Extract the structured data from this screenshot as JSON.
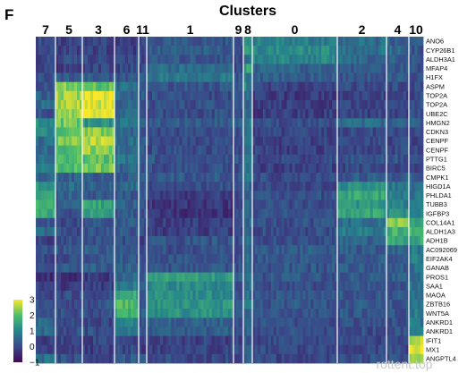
{
  "panel_letter": "F",
  "watermark": "rottent.top",
  "chart_data": {
    "type": "heatmap",
    "title": "Clusters",
    "cluster_order": [
      "7",
      "5",
      "3",
      "6",
      "11",
      "1",
      "9",
      "8",
      "0",
      "2",
      "4",
      "10"
    ],
    "genes": [
      "ANO6",
      "CYP26B1",
      "ALDH3A1",
      "MFAP4",
      "H1FX",
      "ASPM",
      "TOP2A",
      "TOP2A",
      "UBE2C",
      "HMGN2",
      "CDKN3",
      "CENPF",
      "CENPF",
      "PTTG1",
      "BIRC5",
      "CMPK1",
      "HIGD1A",
      "PHLDA1",
      "TUBB3",
      "IGFBP3",
      "COL14A1",
      "ALDH1A3",
      "ADH1B",
      "AC092069",
      "EIF2AK4",
      "GANAB",
      "PROS1",
      "SAA1",
      "MAOA",
      "ZBTB16",
      "WNT5A",
      "ANKRD1",
      "ANKRD1",
      "IFIT1",
      "MX1",
      "ANGPTL4"
    ],
    "colorbar": {
      "ticks": [
        "3",
        "2",
        "1",
        "0",
        "-1"
      ],
      "range": [
        -1,
        3
      ]
    },
    "colors": {
      "low": "#3e0a54",
      "mid": "#2b7d8c",
      "high": "#f9e72a"
    },
    "values_by_cluster": {
      "7": [
        0.1,
        0,
        0,
        -0.1,
        0.2,
        0.2,
        0.4,
        0.6,
        0.2,
        1.1,
        1.0,
        0.6,
        0.5,
        0.6,
        0.8,
        0.5,
        1.2,
        1.3,
        1.8,
        1.6,
        0.3,
        0.6,
        -0.1,
        0.1,
        0,
        0.2,
        -0.4,
        -0.2,
        -0.1,
        0,
        0.3,
        0.5,
        0.5,
        -0.2,
        -0.1,
        0.7
      ],
      "5": [
        -0.1,
        -0.1,
        0,
        -0.2,
        0.3,
        2.3,
        2.5,
        2.6,
        2.5,
        2.2,
        2.1,
        2.2,
        2.0,
        1.9,
        2.0,
        0.4,
        0.6,
        0.5,
        0.3,
        0.2,
        0.1,
        0.1,
        0.1,
        0.2,
        0.1,
        0.3,
        -0.3,
        -0.3,
        0.1,
        0,
        0.1,
        0,
        0.1,
        -0.1,
        -0.2,
        0.1
      ],
      "3": [
        -0.1,
        -0.1,
        0,
        0,
        0.3,
        2.0,
        3.0,
        2.8,
        3.0,
        1.2,
        2.4,
        2.6,
        2.4,
        2.0,
        2.2,
        0.3,
        0.4,
        0.3,
        1.5,
        1.4,
        0.2,
        0.2,
        0.1,
        0.3,
        0.2,
        0.3,
        -0.2,
        -0.2,
        0.1,
        0.2,
        0.1,
        0,
        0.1,
        -0.1,
        -0.2,
        0
      ],
      "6": [
        -0.2,
        -0.2,
        -0.1,
        0,
        0.2,
        0.6,
        0.5,
        0.4,
        0.5,
        0.7,
        0.5,
        0.6,
        0.6,
        0.8,
        0.5,
        0.3,
        0.5,
        0.3,
        0.4,
        0.2,
        0.3,
        0.2,
        0.1,
        0.4,
        0.3,
        0.4,
        0.6,
        0.9,
        1.6,
        1.9,
        1.7,
        0.9,
        0.8,
        0,
        0,
        0.3
      ],
      "11": [
        0,
        -0.1,
        0,
        0,
        0.5,
        0.1,
        0.2,
        0.2,
        0.1,
        0.4,
        0.2,
        0.3,
        0.2,
        0.3,
        0.2,
        0.4,
        0.3,
        0.2,
        0.2,
        0.2,
        0.1,
        0.1,
        0,
        0.2,
        0.2,
        0.2,
        0.4,
        0.3,
        0.3,
        0.3,
        0.3,
        0.1,
        0.1,
        -0.1,
        -0.2,
        0.1
      ],
      "1": [
        0.2,
        0.3,
        0.2,
        0.6,
        0.8,
        0.2,
        0.1,
        0.1,
        0.1,
        0.3,
        0.1,
        0.1,
        0.1,
        0.2,
        0.1,
        0.3,
        0.1,
        -0.2,
        -0.3,
        -0.4,
        -0.1,
        -0.2,
        0.2,
        0.1,
        0.2,
        0.2,
        1.4,
        1.1,
        1.1,
        1.3,
        1.2,
        0.4,
        0.3,
        -0.1,
        -0.1,
        0
      ],
      "9": [
        0,
        -0.1,
        0,
        0,
        0.2,
        0.1,
        0.1,
        0.1,
        0.1,
        0.3,
        0.1,
        0.1,
        0.1,
        0.2,
        0.1,
        0.2,
        0.3,
        0.1,
        0,
        0,
        0.1,
        0,
        0,
        0.1,
        0.1,
        0.1,
        0.4,
        0.2,
        0.2,
        0.3,
        0.2,
        0.1,
        0.1,
        -0.1,
        -0.1,
        0
      ],
      "8": [
        1.0,
        1.2,
        0.8,
        1.5,
        0.9,
        1.0,
        0.6,
        0.5,
        0.6,
        0.8,
        0.6,
        0.6,
        0.6,
        0.7,
        0.6,
        0.6,
        0.5,
        0.4,
        0.5,
        0.6,
        0.5,
        0.4,
        0.5,
        0.5,
        0.5,
        0.5,
        0.6,
        0.6,
        0.6,
        0.7,
        0.6,
        0.4,
        0.4,
        0.3,
        0.3,
        0.3
      ],
      "0": [
        0.9,
        1.1,
        1.0,
        0.4,
        0.3,
        -0.1,
        -0.2,
        -0.2,
        -0.2,
        0.1,
        -0.1,
        -0.1,
        -0.1,
        0,
        -0.1,
        0.1,
        0,
        0.1,
        0.1,
        0.2,
        0.1,
        0.1,
        0.1,
        0.3,
        0.2,
        0.2,
        0.2,
        0.1,
        0.2,
        0.2,
        0.2,
        0.1,
        0.1,
        0,
        0,
        0
      ],
      "2": [
        0.6,
        0.7,
        0.5,
        0.3,
        0.2,
        0,
        -0.1,
        -0.1,
        -0.1,
        0.6,
        0,
        0,
        0,
        0.2,
        0,
        0.3,
        1.1,
        1.6,
        1.3,
        1.6,
        0.6,
        0.9,
        0.4,
        0.3,
        0.3,
        0.3,
        0.3,
        0.2,
        0.2,
        0.3,
        0.2,
        0.1,
        0.1,
        0,
        0,
        0.1
      ],
      "4": [
        0.4,
        0.5,
        0.4,
        0.2,
        0.2,
        0,
        -0.1,
        -0.1,
        -0.1,
        0.4,
        0,
        0,
        0,
        0.2,
        0,
        0.3,
        0.8,
        0.8,
        0.9,
        1.2,
        2.4,
        1.8,
        1.6,
        0.5,
        0.3,
        0.3,
        0.3,
        0.2,
        0.2,
        0.2,
        0.2,
        0.1,
        0.1,
        0,
        0,
        0.1
      ],
      "10": [
        0.2,
        0.2,
        0.2,
        0.1,
        0.2,
        0,
        0,
        0,
        0,
        0.3,
        0,
        0,
        0,
        0.1,
        0,
        0.3,
        0.6,
        0.7,
        0.7,
        0.9,
        1.5,
        1.9,
        1.6,
        0.8,
        1.0,
        0.6,
        0.6,
        0.8,
        0.6,
        0.7,
        0.8,
        0.8,
        0.8,
        2.6,
        2.8,
        2.5
      ]
    }
  }
}
